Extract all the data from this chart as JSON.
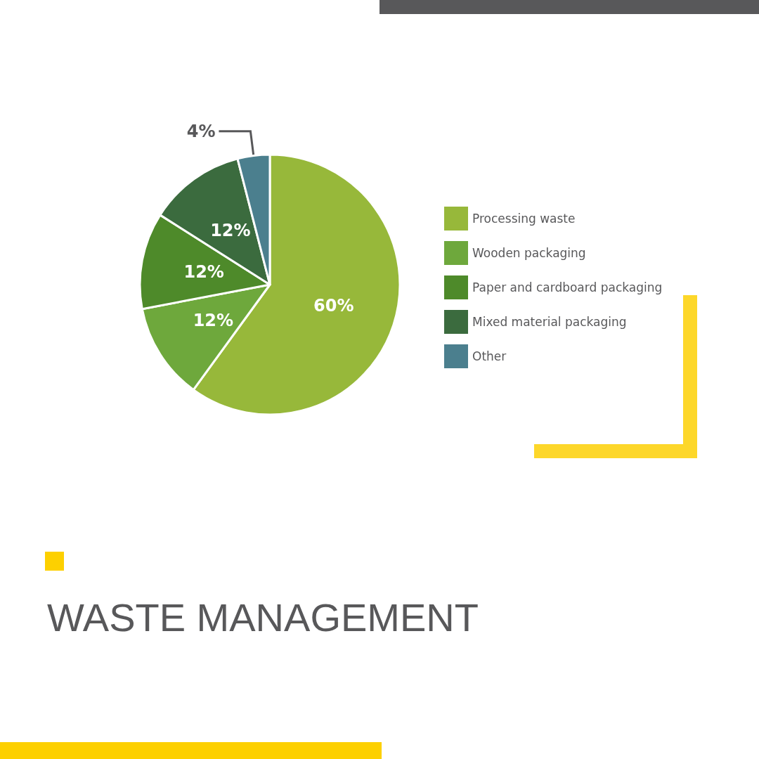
{
  "chart_data": {
    "type": "pie",
    "title": "WASTE MANAGEMENT",
    "categories": [
      "Processing waste",
      "Wooden packaging",
      "Paper and cardboard packaging",
      "Mixed material packaging",
      "Other"
    ],
    "values": [
      60,
      12,
      12,
      12,
      4
    ],
    "colors": [
      "#97b83a",
      "#6ea83c",
      "#4e8a2a",
      "#3b6b3e",
      "#4b7f8e"
    ],
    "value_labels": [
      "60%",
      "12%",
      "12%",
      "12%",
      "4%"
    ],
    "legend": "right"
  }
}
